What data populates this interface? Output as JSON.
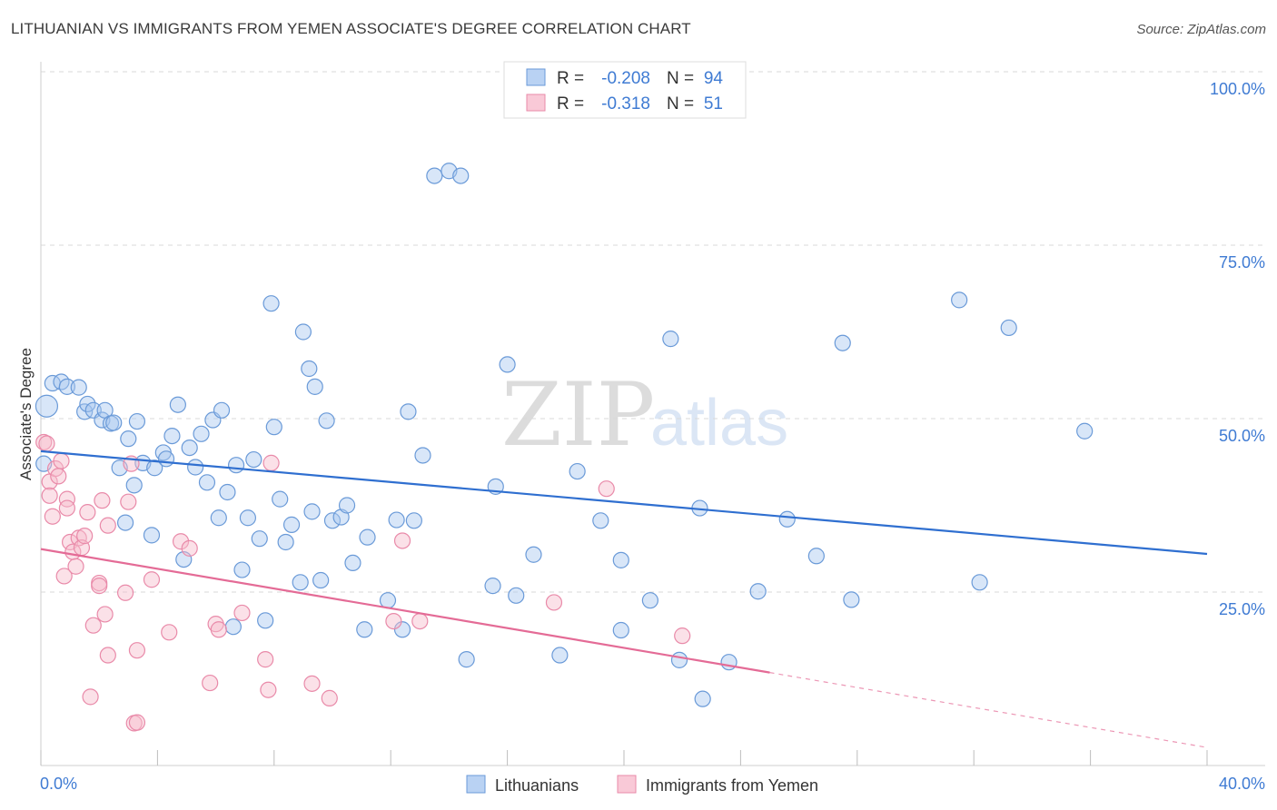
{
  "title": "LITHUANIAN VS IMMIGRANTS FROM YEMEN ASSOCIATE'S DEGREE CORRELATION CHART",
  "source": "Source: ZipAtlas.com",
  "watermark": {
    "zip": "ZIP",
    "atlas": "atlas"
  },
  "colors": {
    "blue_fill": "#a9c8f0",
    "blue_stroke": "#6a9ad8",
    "blue_line": "#2f6fd0",
    "pink_fill": "#f6bccd",
    "pink_stroke": "#e98aa9",
    "pink_line": "#e46b96",
    "tick_text": "#3f7bd3",
    "grid": "#d9d9d9"
  },
  "legend": {
    "rows": [
      {
        "r_label": "R =",
        "r_value": "-0.208",
        "n_label": "N =",
        "n_value": "94"
      },
      {
        "r_label": "R =",
        "r_value": "-0.318",
        "n_label": "N =",
        "n_value": "51"
      }
    ]
  },
  "chart_data": {
    "type": "scatter",
    "title": "LITHUANIAN VS IMMIGRANTS FROM YEMEN ASSOCIATE'S DEGREE CORRELATION CHART",
    "xlabel": "",
    "ylabel": "Associate's Degree",
    "xlim": [
      0,
      40
    ],
    "ylim": [
      0,
      100
    ],
    "x_tick_labels": [
      "0.0%",
      "40.0%"
    ],
    "y_ticks": [
      25,
      50,
      75,
      100
    ],
    "y_tick_labels": [
      "25.0%",
      "50.0%",
      "75.0%",
      "100.0%"
    ],
    "grid": true,
    "legend_position": "top-center",
    "series": [
      {
        "name": "Lithuanians",
        "color": "blue",
        "R": -0.208,
        "N": 94,
        "trend": {
          "x0": 0,
          "y0": 45.3,
          "x1": 40,
          "y1": 30.5
        },
        "points": [
          [
            0.2,
            51.8
          ],
          [
            0.4,
            55.1
          ],
          [
            0.7,
            55.3
          ],
          [
            0.9,
            54.6
          ],
          [
            1.3,
            54.5
          ],
          [
            1.5,
            51.0
          ],
          [
            1.6,
            52.1
          ],
          [
            1.8,
            51.2
          ],
          [
            2.1,
            49.8
          ],
          [
            2.2,
            51.2
          ],
          [
            2.4,
            49.3
          ],
          [
            2.5,
            49.4
          ],
          [
            2.7,
            42.9
          ],
          [
            3.0,
            47.1
          ],
          [
            3.2,
            40.4
          ],
          [
            3.3,
            49.6
          ],
          [
            3.5,
            43.6
          ],
          [
            3.8,
            33.2
          ],
          [
            3.9,
            42.9
          ],
          [
            4.2,
            45.1
          ],
          [
            4.3,
            44.2
          ],
          [
            4.5,
            47.5
          ],
          [
            4.7,
            52.0
          ],
          [
            4.9,
            29.7
          ],
          [
            5.1,
            45.8
          ],
          [
            5.3,
            43.0
          ],
          [
            5.5,
            47.8
          ],
          [
            5.7,
            40.8
          ],
          [
            5.9,
            49.8
          ],
          [
            6.1,
            35.7
          ],
          [
            6.2,
            51.2
          ],
          [
            6.4,
            39.4
          ],
          [
            6.7,
            43.3
          ],
          [
            6.9,
            28.2
          ],
          [
            7.1,
            35.7
          ],
          [
            7.3,
            44.1
          ],
          [
            7.5,
            32.7
          ],
          [
            7.7,
            20.9
          ],
          [
            7.9,
            66.6
          ],
          [
            8.0,
            48.8
          ],
          [
            8.2,
            38.4
          ],
          [
            8.4,
            32.2
          ],
          [
            8.6,
            34.7
          ],
          [
            8.9,
            26.4
          ],
          [
            9.0,
            62.5
          ],
          [
            9.2,
            57.2
          ],
          [
            9.3,
            36.6
          ],
          [
            9.4,
            54.6
          ],
          [
            9.6,
            26.7
          ],
          [
            9.8,
            49.7
          ],
          [
            10.0,
            35.3
          ],
          [
            10.3,
            35.8
          ],
          [
            10.5,
            37.5
          ],
          [
            10.7,
            29.2
          ],
          [
            11.1,
            19.6
          ],
          [
            11.2,
            32.9
          ],
          [
            11.9,
            23.8
          ],
          [
            12.2,
            35.4
          ],
          [
            12.4,
            19.6
          ],
          [
            12.6,
            51.0
          ],
          [
            12.8,
            35.3
          ],
          [
            13.1,
            44.7
          ],
          [
            13.5,
            85.0
          ],
          [
            14.0,
            85.7
          ],
          [
            14.4,
            85.0
          ],
          [
            14.6,
            15.3
          ],
          [
            15.5,
            25.9
          ],
          [
            15.6,
            40.2
          ],
          [
            16.0,
            57.8
          ],
          [
            16.3,
            24.5
          ],
          [
            16.9,
            30.4
          ],
          [
            17.8,
            15.9
          ],
          [
            18.4,
            42.4
          ],
          [
            19.2,
            35.3
          ],
          [
            19.9,
            29.6
          ],
          [
            19.9,
            19.5
          ],
          [
            20.9,
            23.8
          ],
          [
            21.6,
            61.5
          ],
          [
            21.9,
            15.2
          ],
          [
            22.6,
            37.1
          ],
          [
            22.7,
            9.6
          ],
          [
            23.6,
            14.9
          ],
          [
            24.6,
            25.1
          ],
          [
            25.6,
            35.5
          ],
          [
            26.6,
            30.2
          ],
          [
            27.5,
            60.9
          ],
          [
            27.8,
            23.9
          ],
          [
            31.5,
            67.1
          ],
          [
            32.2,
            26.4
          ],
          [
            33.2,
            63.1
          ],
          [
            35.8,
            48.2
          ],
          [
            0.1,
            43.5
          ],
          [
            2.9,
            35.0
          ],
          [
            6.6,
            20.0
          ]
        ]
      },
      {
        "name": "Immigrants from Yemen",
        "color": "pink",
        "R": -0.318,
        "N": 51,
        "trend": {
          "x0": 0,
          "y0": 31.2,
          "x1": 25.0,
          "y1": 13.4,
          "dash_x1": 40,
          "dash_y1": 2.6
        },
        "points": [
          [
            0.1,
            46.6
          ],
          [
            0.2,
            46.4
          ],
          [
            0.3,
            40.9
          ],
          [
            0.3,
            38.9
          ],
          [
            0.4,
            35.9
          ],
          [
            0.5,
            42.8
          ],
          [
            0.6,
            41.7
          ],
          [
            0.7,
            43.9
          ],
          [
            0.8,
            27.3
          ],
          [
            0.9,
            38.4
          ],
          [
            0.9,
            37.1
          ],
          [
            1.0,
            32.2
          ],
          [
            1.1,
            30.8
          ],
          [
            1.2,
            28.7
          ],
          [
            1.3,
            32.8
          ],
          [
            1.4,
            31.4
          ],
          [
            1.5,
            33.1
          ],
          [
            1.6,
            36.5
          ],
          [
            1.7,
            9.9
          ],
          [
            1.8,
            20.2
          ],
          [
            2.0,
            26.3
          ],
          [
            2.0,
            25.9
          ],
          [
            2.1,
            38.2
          ],
          [
            2.2,
            21.8
          ],
          [
            2.3,
            34.6
          ],
          [
            2.3,
            15.9
          ],
          [
            2.9,
            24.9
          ],
          [
            3.0,
            38.0
          ],
          [
            3.1,
            43.5
          ],
          [
            3.2,
            6.1
          ],
          [
            3.3,
            6.2
          ],
          [
            3.3,
            16.6
          ],
          [
            3.8,
            26.8
          ],
          [
            4.4,
            19.2
          ],
          [
            4.8,
            32.3
          ],
          [
            5.1,
            31.3
          ],
          [
            5.8,
            11.9
          ],
          [
            6.0,
            20.4
          ],
          [
            6.1,
            19.6
          ],
          [
            6.9,
            22.0
          ],
          [
            7.7,
            15.3
          ],
          [
            7.8,
            10.9
          ],
          [
            7.9,
            43.6
          ],
          [
            9.3,
            11.8
          ],
          [
            9.9,
            9.7
          ],
          [
            12.1,
            20.8
          ],
          [
            12.4,
            32.4
          ],
          [
            13.0,
            20.8
          ],
          [
            17.6,
            23.5
          ],
          [
            19.4,
            39.9
          ],
          [
            22.0,
            18.7
          ]
        ]
      }
    ]
  },
  "bottom_legend": [
    {
      "label": "Lithuanians",
      "color": "blue"
    },
    {
      "label": "Immigrants from Yemen",
      "color": "pink"
    }
  ]
}
